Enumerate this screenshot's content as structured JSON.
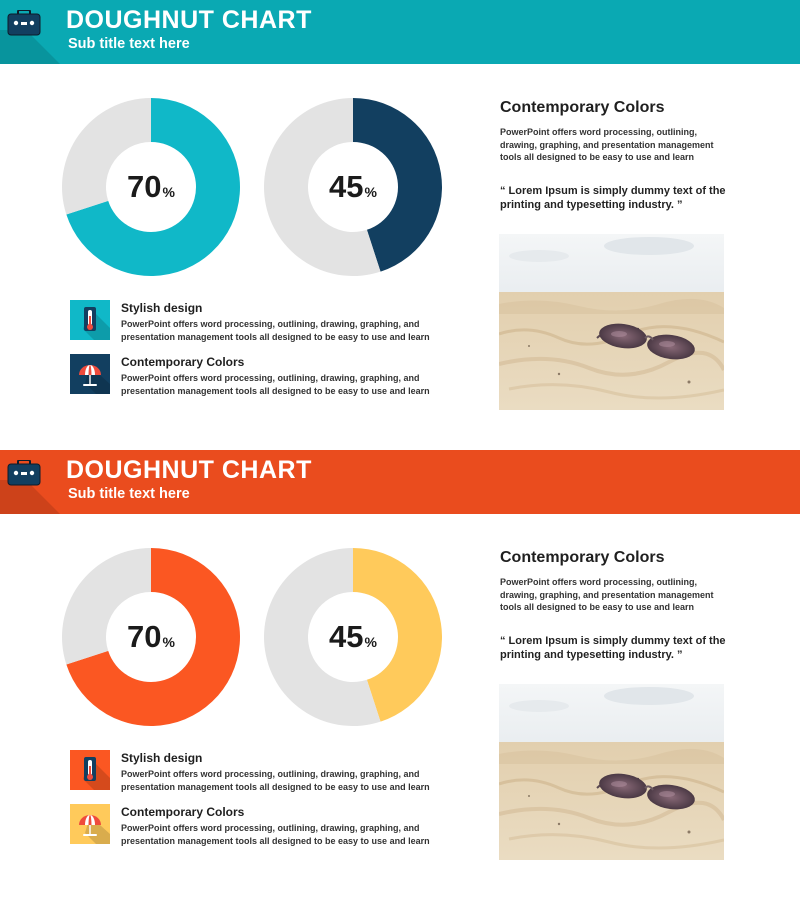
{
  "slides": [
    {
      "theme": {
        "accent": "#0fb4bd",
        "header": "#0aa9b3",
        "secondary": "#123f60",
        "track": "#e3e3e3",
        "icon1_bg": "#10b8c8",
        "icon2_bg": "#123f60",
        "icon_color": "#123f60"
      },
      "header": {
        "title": "DOUGHNUT CHART",
        "subtitle": "Sub title text here",
        "icon": "briefcase-icon"
      },
      "chart_data": [
        {
          "type": "pie",
          "variant": "doughnut",
          "values": [
            70,
            30
          ],
          "display": "70",
          "unit": "%",
          "colors": [
            "#10b8c8",
            "#e3e3e3"
          ]
        },
        {
          "type": "pie",
          "variant": "doughnut",
          "values": [
            45,
            55
          ],
          "display": "45",
          "unit": "%",
          "colors": [
            "#123f60",
            "#e3e3e3"
          ]
        }
      ],
      "features": [
        {
          "title": "Stylish design",
          "desc": "PowerPoint offers word processing, outlining, drawing, graphing, and presentation management tools all designed to be easy to use and learn",
          "icon": "thermometer-icon"
        },
        {
          "title": "Contemporary Colors",
          "desc": "PowerPoint offers word processing, outlining, drawing, graphing, and presentation management tools all designed to be easy to use and learn",
          "icon": "beach-umbrella-icon"
        }
      ],
      "right": {
        "title": "Contemporary Colors",
        "text": "PowerPoint offers word processing, outlining, drawing, graphing, and presentation management tools all designed to be easy to use and learn",
        "quote": "“ Lorem Ipsum is simply dummy text of the printing and typesetting industry.  ”"
      }
    },
    {
      "theme": {
        "accent": "#fb5722",
        "header": "#ea4c1e",
        "secondary": "#ffca5b",
        "track": "#e3e3e3",
        "icon1_bg": "#fb5722",
        "icon2_bg": "#ffca5b",
        "icon_color": "#123f60"
      },
      "header": {
        "title": "DOUGHNUT CHART",
        "subtitle": "Sub title text here",
        "icon": "briefcase-icon"
      },
      "chart_data": [
        {
          "type": "pie",
          "variant": "doughnut",
          "values": [
            70,
            30
          ],
          "display": "70",
          "unit": "%",
          "colors": [
            "#fb5722",
            "#e3e3e3"
          ]
        },
        {
          "type": "pie",
          "variant": "doughnut",
          "values": [
            45,
            55
          ],
          "display": "45",
          "unit": "%",
          "colors": [
            "#ffca5b",
            "#e3e3e3"
          ]
        }
      ],
      "features": [
        {
          "title": "Stylish design",
          "desc": "PowerPoint offers word processing, outlining, drawing, graphing, and presentation management tools all designed to be easy to use and learn",
          "icon": "thermometer-icon"
        },
        {
          "title": "Contemporary Colors",
          "desc": "PowerPoint offers word processing, outlining, drawing, graphing, and presentation management tools all designed to be easy to use and learn",
          "icon": "beach-umbrella-icon"
        }
      ],
      "right": {
        "title": "Contemporary Colors",
        "text": "PowerPoint offers word processing, outlining, drawing, graphing, and presentation management tools all designed to be easy to use and learn",
        "quote": "“ Lorem Ipsum is simply dummy text of the printing and typesetting industry.  ”"
      }
    }
  ]
}
